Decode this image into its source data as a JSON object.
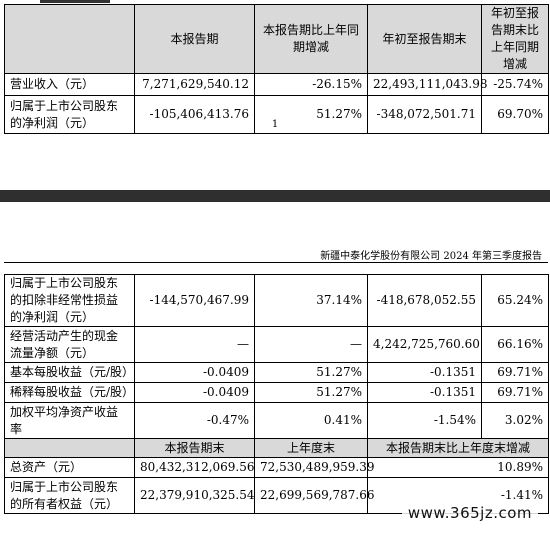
{
  "table1": {
    "headers": [
      "",
      "本报告期",
      "本报告期比上年同期增减",
      "年初至报告期末",
      "年初至报告期末比上年同期增减"
    ],
    "rows": [
      {
        "label": "营业收入（元）",
        "current": "7,271,629,540.12",
        "yoy": "-26.15%",
        "ytd": "22,493,111,043.98",
        "ytd_yoy": "-25.74%"
      },
      {
        "label": "归属于上市公司股东的净利润（元）",
        "current": "-105,406,413.76",
        "yoy": "51.27%",
        "ytd": "-348,072,501.71",
        "ytd_yoy": "69.70%"
      }
    ]
  },
  "page_number": "1",
  "report_header": "新疆中泰化学股份有限公司 2024 年第三季度报告",
  "table2": {
    "rows": [
      {
        "label": "归属于上市公司股东的扣除非经常性损益的净利润（元）",
        "current": "-144,570,467.99",
        "yoy": "37.14%",
        "ytd": "-418,678,052.55",
        "ytd_yoy": "65.24%"
      },
      {
        "label": "经营活动产生的现金流量净额（元）",
        "current": "—",
        "yoy": "—",
        "ytd": "4,242,725,760.60",
        "ytd_yoy": "66.16%"
      },
      {
        "label": "基本每股收益（元/股）",
        "current": "-0.0409",
        "yoy": "51.27%",
        "ytd": "-0.1351",
        "ytd_yoy": "69.71%"
      },
      {
        "label": "稀释每股收益（元/股）",
        "current": "-0.0409",
        "yoy": "51.27%",
        "ytd": "-0.1351",
        "ytd_yoy": "69.71%"
      },
      {
        "label": "加权平均净资产收益率",
        "current": "-0.47%",
        "yoy": "0.41%",
        "ytd": "-1.54%",
        "ytd_yoy": "3.02%"
      }
    ],
    "sub_headers": [
      "",
      "本报告期末",
      "上年度末",
      "本报告期末比上年度末增减"
    ],
    "balance_rows": [
      {
        "label": "总资产（元）",
        "end": "80,432,312,069.56",
        "prior": "72,530,489,959.39",
        "change": "10.89%"
      },
      {
        "label": "归属于上市公司股东的所有者权益（元）",
        "end": "22,379,910,325.54",
        "prior": "22,699,569,787.66",
        "change": "-1.41%"
      }
    ]
  },
  "watermark": "www.365jz.com"
}
